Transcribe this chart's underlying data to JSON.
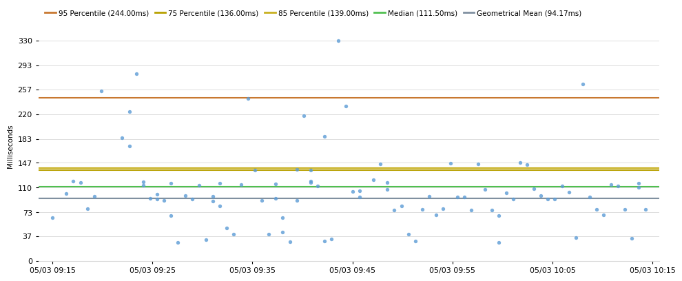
{
  "ylabel": "Milliseconds",
  "ylim": [
    0,
    345
  ],
  "yticks": [
    0,
    37,
    73,
    110,
    147,
    183,
    220,
    257,
    293,
    330
  ],
  "hlines": [
    {
      "value": 244.0,
      "color": "#c87830",
      "label": "95 Percentile (244.00ms)",
      "lw": 1.5
    },
    {
      "value": 136.0,
      "color": "#b8a000",
      "label": "75 Percentile (136.00ms)",
      "lw": 1.5
    },
    {
      "value": 139.0,
      "color": "#c8b020",
      "label": "85 Percentile (139.00ms)",
      "lw": 1.5
    },
    {
      "value": 111.5,
      "color": "#50c050",
      "label": "Median (111.50ms)",
      "lw": 1.5
    },
    {
      "value": 94.17,
      "color": "#8090a0",
      "label": "Geometrical Mean (94.17ms)",
      "lw": 1.5
    }
  ],
  "scatter_color": "#5b9bd5",
  "scatter_alpha": 0.8,
  "scatter_size": 15,
  "background_color": "#ffffff",
  "grid_color": "#d8d8d8",
  "xtick_labels": [
    "05/03 09:15",
    "05/03 09:25",
    "05/03 09:35",
    "05/03 09:45",
    "05/03 09:55",
    "05/03 10:05",
    "05/03 10:15"
  ],
  "scatter_points": [
    [
      0,
      65
    ],
    [
      2,
      101
    ],
    [
      3,
      120
    ],
    [
      4,
      118
    ],
    [
      5,
      78
    ],
    [
      6,
      97
    ],
    [
      7,
      255
    ],
    [
      10,
      185
    ],
    [
      11,
      224
    ],
    [
      11,
      172
    ],
    [
      12,
      281
    ],
    [
      13,
      119
    ],
    [
      13,
      113
    ],
    [
      14,
      94
    ],
    [
      15,
      93
    ],
    [
      15,
      100
    ],
    [
      16,
      91
    ],
    [
      17,
      117
    ],
    [
      17,
      68
    ],
    [
      18,
      28
    ],
    [
      19,
      98
    ],
    [
      20,
      93
    ],
    [
      21,
      113
    ],
    [
      22,
      32
    ],
    [
      23,
      97
    ],
    [
      23,
      90
    ],
    [
      24,
      117
    ],
    [
      24,
      83
    ],
    [
      25,
      50
    ],
    [
      26,
      40
    ],
    [
      27,
      115
    ],
    [
      28,
      243
    ],
    [
      29,
      136
    ],
    [
      30,
      91
    ],
    [
      31,
      40
    ],
    [
      32,
      116
    ],
    [
      32,
      94
    ],
    [
      33,
      65
    ],
    [
      33,
      43
    ],
    [
      34,
      29
    ],
    [
      35,
      137
    ],
    [
      35,
      91
    ],
    [
      36,
      218
    ],
    [
      37,
      136
    ],
    [
      37,
      120
    ],
    [
      37,
      118
    ],
    [
      38,
      112
    ],
    [
      39,
      187
    ],
    [
      39,
      30
    ],
    [
      40,
      33
    ],
    [
      41,
      330
    ],
    [
      42,
      232
    ],
    [
      43,
      104
    ],
    [
      44,
      96
    ],
    [
      44,
      105
    ],
    [
      46,
      122
    ],
    [
      47,
      145
    ],
    [
      48,
      118
    ],
    [
      48,
      107
    ],
    [
      49,
      76
    ],
    [
      50,
      82
    ],
    [
      51,
      40
    ],
    [
      52,
      30
    ],
    [
      53,
      77
    ],
    [
      54,
      97
    ],
    [
      55,
      69
    ],
    [
      56,
      78
    ],
    [
      57,
      146
    ],
    [
      58,
      96
    ],
    [
      59,
      96
    ],
    [
      60,
      76
    ],
    [
      61,
      145
    ],
    [
      62,
      107
    ],
    [
      63,
      76
    ],
    [
      64,
      68
    ],
    [
      64,
      28
    ],
    [
      65,
      102
    ],
    [
      66,
      93
    ],
    [
      67,
      147
    ],
    [
      68,
      144
    ],
    [
      69,
      108
    ],
    [
      70,
      98
    ],
    [
      71,
      93
    ],
    [
      72,
      93
    ],
    [
      73,
      112
    ],
    [
      74,
      103
    ],
    [
      75,
      35
    ],
    [
      76,
      265
    ],
    [
      77,
      96
    ],
    [
      78,
      77
    ],
    [
      79,
      69
    ],
    [
      80,
      115
    ],
    [
      81,
      112
    ],
    [
      82,
      77
    ],
    [
      83,
      34
    ],
    [
      84,
      110
    ],
    [
      84,
      117
    ],
    [
      85,
      77
    ]
  ]
}
